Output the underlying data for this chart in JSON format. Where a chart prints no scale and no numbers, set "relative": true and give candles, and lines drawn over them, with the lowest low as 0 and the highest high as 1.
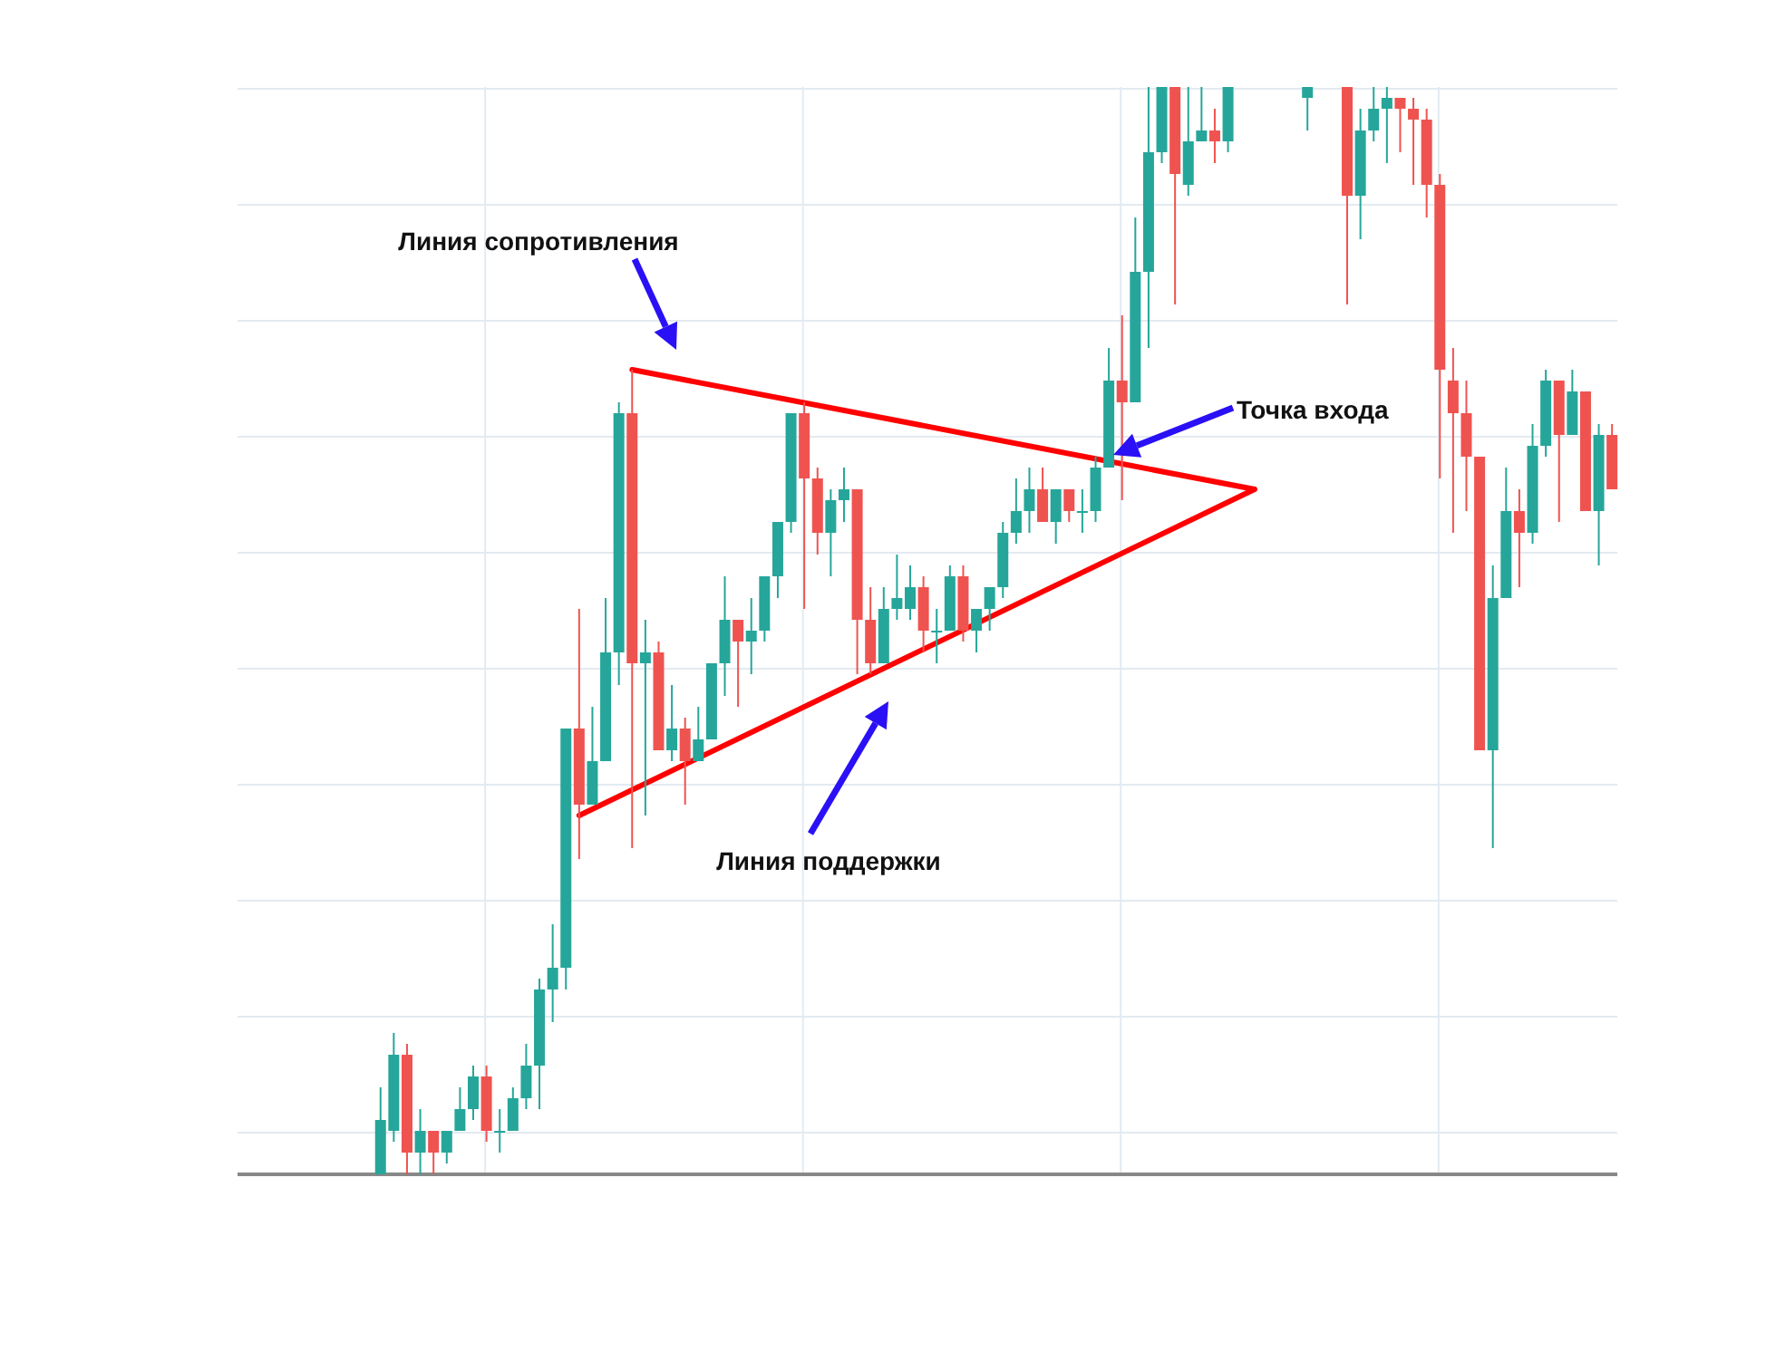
{
  "chart_data": {
    "type": "candlestick",
    "relative": true,
    "grid": true,
    "categories": [
      null,
      null,
      null,
      null,
      null,
      null,
      null,
      null,
      null,
      null,
      null,
      null,
      null,
      null,
      null,
      null,
      null,
      null,
      null,
      null,
      null,
      null,
      null,
      null,
      null,
      null,
      null,
      null,
      null,
      null,
      null,
      null,
      null,
      null,
      null,
      null,
      null,
      null,
      null,
      null,
      null,
      null,
      null,
      null,
      null,
      null,
      null,
      null,
      null,
      null,
      null,
      null,
      null,
      null,
      null,
      null,
      null,
      null,
      null,
      null,
      null,
      null,
      null,
      null,
      null,
      null,
      null,
      null,
      null,
      null,
      null,
      null,
      null,
      null,
      null,
      null,
      null,
      null,
      null,
      null,
      null,
      null,
      null,
      null,
      null,
      null,
      null,
      null,
      null,
      null,
      null,
      null,
      null,
      null
    ],
    "ohlc": [
      [
        0.0,
        0.08,
        0.0,
        0.05
      ],
      [
        0.04,
        0.13,
        0.03,
        0.11
      ],
      [
        0.11,
        0.12,
        0.0,
        0.02
      ],
      [
        0.02,
        0.06,
        0.0,
        0.04
      ],
      [
        0.04,
        0.04,
        0.0,
        0.02
      ],
      [
        0.02,
        0.04,
        0.01,
        0.04
      ],
      [
        0.04,
        0.08,
        0.04,
        0.06
      ],
      [
        0.06,
        0.1,
        0.05,
        0.09
      ],
      [
        0.09,
        0.1,
        0.03,
        0.04
      ],
      [
        0.04,
        0.06,
        0.02,
        0.04
      ],
      [
        0.04,
        0.08,
        0.04,
        0.07
      ],
      [
        0.07,
        0.12,
        0.06,
        0.1
      ],
      [
        0.1,
        0.18,
        0.06,
        0.17
      ],
      [
        0.17,
        0.23,
        0.14,
        0.19
      ],
      [
        0.19,
        0.41,
        0.17,
        0.41
      ],
      [
        0.41,
        0.52,
        0.29,
        0.34
      ],
      [
        0.34,
        0.43,
        0.34,
        0.38
      ],
      [
        0.38,
        0.53,
        0.38,
        0.48
      ],
      [
        0.48,
        0.71,
        0.45,
        0.7
      ],
      [
        0.7,
        0.74,
        0.3,
        0.47
      ],
      [
        0.47,
        0.51,
        0.33,
        0.48
      ],
      [
        0.48,
        0.49,
        0.39,
        0.39
      ],
      [
        0.39,
        0.45,
        0.38,
        0.41
      ],
      [
        0.41,
        0.42,
        0.34,
        0.38
      ],
      [
        0.38,
        0.43,
        0.38,
        0.4
      ],
      [
        0.4,
        0.47,
        0.4,
        0.47
      ],
      [
        0.47,
        0.55,
        0.44,
        0.51
      ],
      [
        0.51,
        0.51,
        0.43,
        0.49
      ],
      [
        0.49,
        0.53,
        0.46,
        0.5
      ],
      [
        0.5,
        0.55,
        0.49,
        0.55
      ],
      [
        0.55,
        0.6,
        0.53,
        0.6
      ],
      [
        0.6,
        0.7,
        0.59,
        0.7
      ],
      [
        0.7,
        0.71,
        0.52,
        0.64
      ],
      [
        0.64,
        0.65,
        0.57,
        0.59
      ],
      [
        0.59,
        0.63,
        0.55,
        0.62
      ],
      [
        0.62,
        0.65,
        0.6,
        0.63
      ],
      [
        0.63,
        0.63,
        0.46,
        0.51
      ],
      [
        0.51,
        0.54,
        0.46,
        0.47
      ],
      [
        0.47,
        0.54,
        0.47,
        0.52
      ],
      [
        0.52,
        0.57,
        0.51,
        0.53
      ],
      [
        0.52,
        0.56,
        0.51,
        0.54
      ],
      [
        0.54,
        0.55,
        0.48,
        0.5
      ],
      [
        0.5,
        0.52,
        0.47,
        0.5
      ],
      [
        0.5,
        0.56,
        0.5,
        0.55
      ],
      [
        0.55,
        0.56,
        0.49,
        0.5
      ],
      [
        0.5,
        0.52,
        0.48,
        0.52
      ],
      [
        0.52,
        0.54,
        0.5,
        0.54
      ],
      [
        0.54,
        0.6,
        0.53,
        0.59
      ],
      [
        0.59,
        0.64,
        0.58,
        0.61
      ],
      [
        0.61,
        0.65,
        0.59,
        0.63
      ],
      [
        0.63,
        0.65,
        0.6,
        0.6
      ],
      [
        0.6,
        0.63,
        0.58,
        0.63
      ],
      [
        0.63,
        0.63,
        0.6,
        0.61
      ],
      [
        0.61,
        0.63,
        0.59,
        0.61
      ],
      [
        0.61,
        0.66,
        0.6,
        0.65
      ],
      [
        0.65,
        0.76,
        0.65,
        0.73
      ],
      [
        0.73,
        0.79,
        0.62,
        0.71
      ],
      [
        0.71,
        0.88,
        0.71,
        0.83
      ],
      [
        0.83,
        1.0,
        0.76,
        0.94
      ],
      [
        0.94,
        1.0,
        0.93,
        1.0
      ],
      [
        1.0,
        1.0,
        0.8,
        0.92
      ],
      [
        0.91,
        1.0,
        0.9,
        0.95
      ],
      [
        0.95,
        1.0,
        0.95,
        0.96
      ],
      [
        0.96,
        0.98,
        0.93,
        0.95
      ],
      [
        0.95,
        1.0,
        0.94,
        1.0
      ],
      null,
      null,
      null,
      null,
      null,
      [
        0.99,
        1.0,
        0.96,
        1.0
      ],
      null,
      null,
      [
        1.0,
        1.0,
        0.8,
        0.9
      ],
      [
        0.9,
        0.98,
        0.86,
        0.96
      ],
      [
        0.96,
        1.0,
        0.95,
        0.98
      ],
      [
        0.98,
        1.0,
        0.93,
        0.99
      ],
      [
        0.99,
        0.99,
        0.94,
        0.98
      ],
      [
        0.98,
        0.99,
        0.91,
        0.97
      ],
      [
        0.97,
        0.98,
        0.88,
        0.91
      ],
      [
        0.91,
        0.92,
        0.64,
        0.74
      ],
      [
        0.73,
        0.76,
        0.59,
        0.7
      ],
      [
        0.7,
        0.73,
        0.61,
        0.66
      ],
      [
        0.66,
        0.66,
        0.39,
        0.39
      ],
      [
        0.39,
        0.56,
        0.3,
        0.53
      ],
      [
        0.53,
        0.65,
        0.53,
        0.61
      ],
      [
        0.61,
        0.63,
        0.54,
        0.59
      ],
      [
        0.59,
        0.69,
        0.58,
        0.67
      ],
      [
        0.67,
        0.74,
        0.66,
        0.73
      ],
      [
        0.73,
        0.73,
        0.6,
        0.68
      ],
      [
        0.68,
        0.74,
        0.68,
        0.72
      ],
      [
        0.72,
        0.72,
        0.61,
        0.61
      ],
      [
        0.61,
        0.69,
        0.56,
        0.68
      ],
      [
        0.68,
        0.69,
        0.63,
        0.63
      ]
    ],
    "series": [
      {
        "type": "line",
        "color": "#ff0000",
        "values": [
          null,
          null,
          null,
          null,
          null,
          null,
          null,
          null,
          null,
          null,
          null,
          null,
          null,
          null,
          null,
          null,
          null,
          null,
          null,
          0.74,
          null,
          null,
          null,
          null,
          null,
          null,
          null,
          null,
          null,
          null,
          null,
          null,
          null,
          null,
          null,
          null,
          null,
          null,
          null,
          null,
          null,
          null,
          null,
          null,
          null,
          null,
          null,
          null,
          null,
          null,
          null,
          null,
          null,
          null,
          null,
          null,
          null,
          null,
          null,
          null,
          null,
          null,
          null,
          null,
          null,
          null,
          0.63,
          null,
          null,
          null,
          null,
          null,
          null,
          null,
          null,
          null,
          null,
          null,
          null,
          null,
          null,
          null,
          null,
          null,
          null,
          null,
          null,
          null,
          null,
          null,
          null,
          null,
          null,
          null
        ]
      },
      {
        "type": "line",
        "color": "#ff0000",
        "values": [
          null,
          null,
          null,
          null,
          null,
          null,
          null,
          null,
          null,
          null,
          null,
          null,
          null,
          null,
          null,
          0.33,
          null,
          null,
          null,
          null,
          null,
          null,
          null,
          null,
          null,
          null,
          null,
          null,
          null,
          null,
          null,
          null,
          null,
          null,
          null,
          null,
          null,
          null,
          null,
          null,
          null,
          null,
          null,
          null,
          null,
          null,
          null,
          null,
          null,
          null,
          null,
          null,
          null,
          null,
          null,
          null,
          null,
          null,
          null,
          null,
          null,
          null,
          null,
          null,
          null,
          null,
          0.63,
          null,
          null,
          null,
          null,
          null,
          null,
          null,
          null,
          null,
          null,
          null,
          null,
          null,
          null,
          null,
          null,
          null,
          null,
          null,
          null,
          null,
          null,
          null,
          null,
          null,
          null,
          null
        ]
      }
    ],
    "annotations": [
      "Линия сопротивления",
      "Линия поддержки",
      "Точка входа"
    ]
  }
}
